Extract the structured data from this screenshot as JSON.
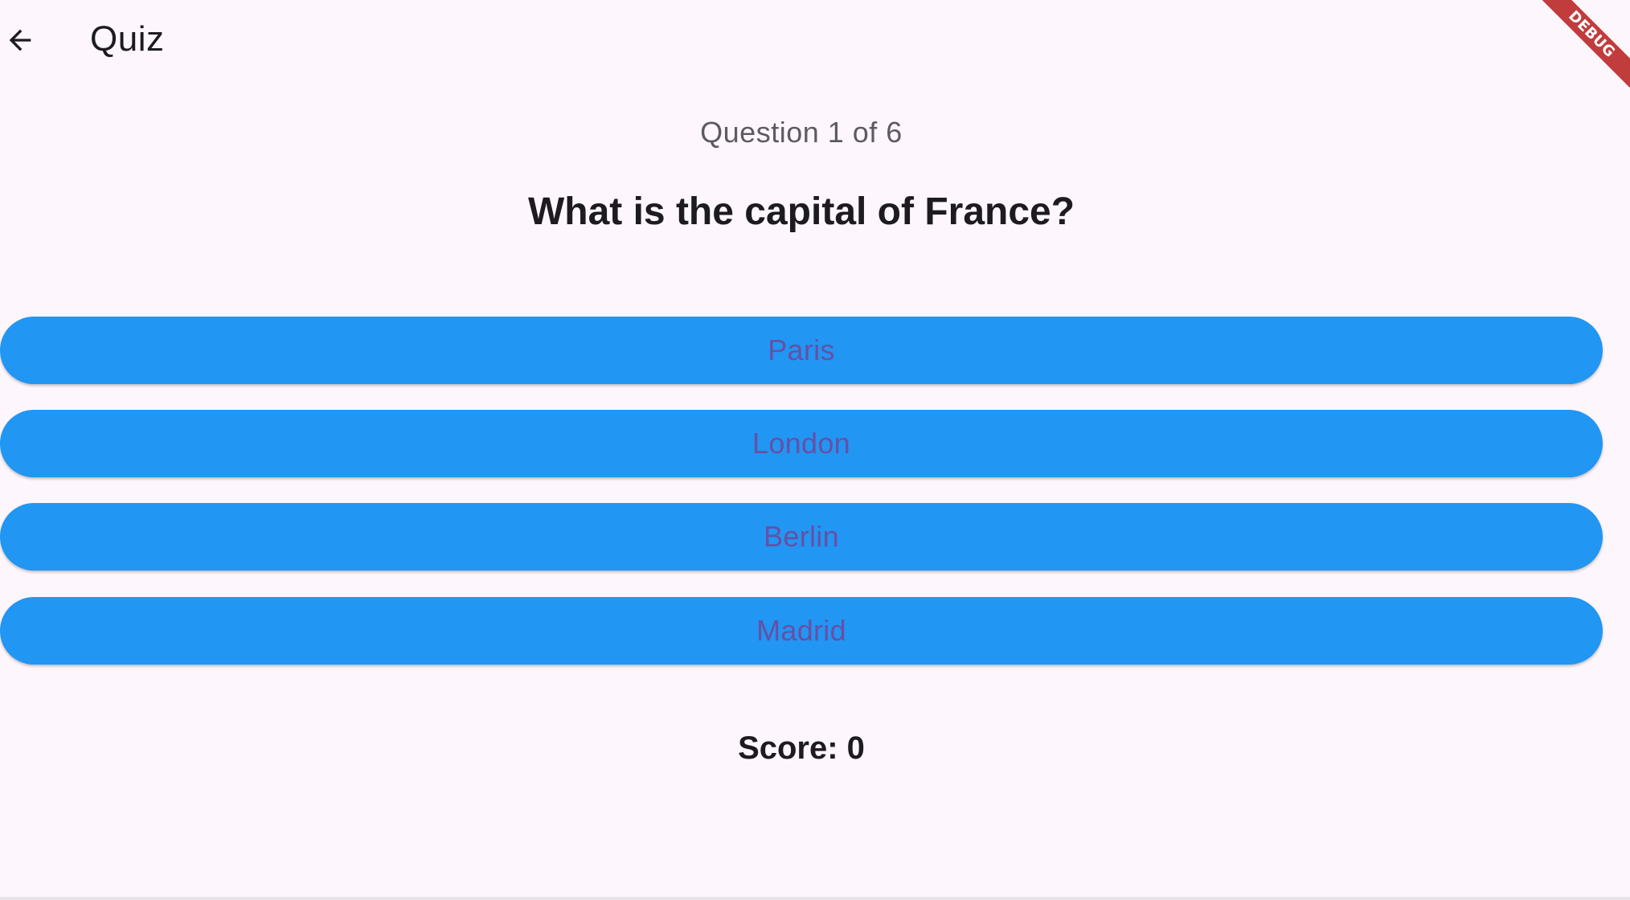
{
  "appbar": {
    "title": "Quiz",
    "back_icon": "arrow-back-icon"
  },
  "debug_banner": {
    "label": "DEBUG",
    "color": "#b71c1c"
  },
  "quiz": {
    "progress": "Question 1 of 6",
    "current_question": 1,
    "total_questions": 6,
    "question": "What is the capital of France?",
    "answers": [
      {
        "label": "Paris"
      },
      {
        "label": "London"
      },
      {
        "label": "Berlin"
      },
      {
        "label": "Madrid"
      }
    ],
    "score": "Score: 0"
  },
  "colors": {
    "background": "#fdf7fd",
    "answer_button": "#2196f3",
    "answer_text": "#6750a4",
    "primary_text": "#1d1b20",
    "secondary_text": "#5e5a63"
  }
}
